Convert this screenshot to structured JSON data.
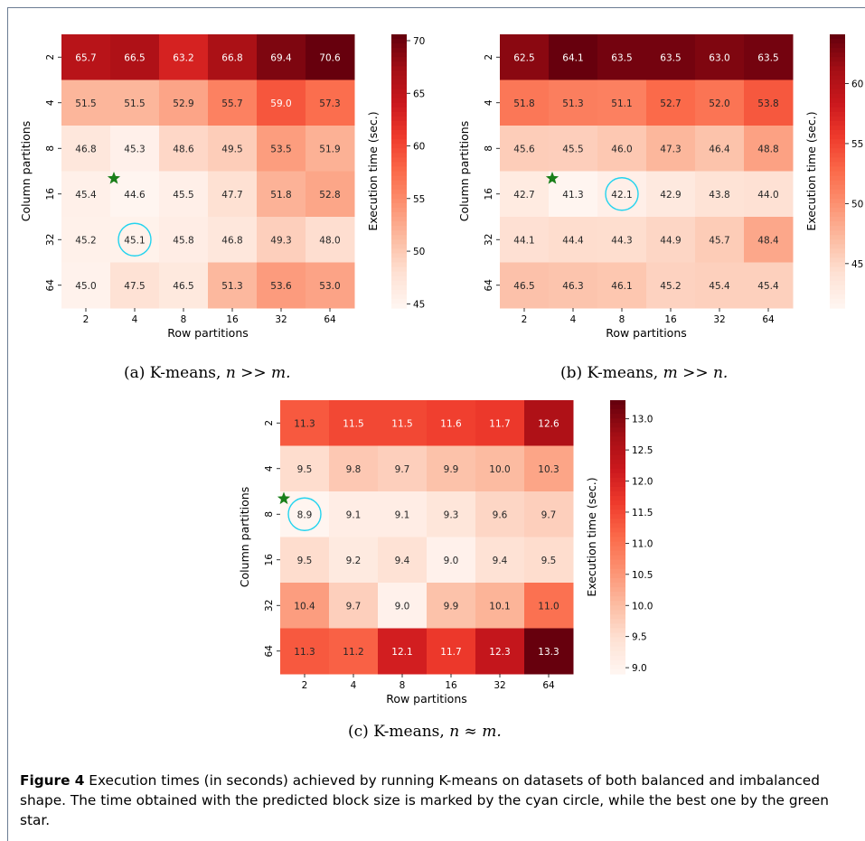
{
  "figure": {
    "label": "Figure 4",
    "caption": "Execution times (in seconds) achieved by running K-means on datasets of both balanced and imbalanced shape. The time obtained with the predicted block size is marked by the cyan circle, while the best one by the green star."
  },
  "colors": {
    "cmap": [
      "#fff5f0",
      "#fee0d2",
      "#fcbba1",
      "#fc9272",
      "#fb6a4a",
      "#ef3b2c",
      "#cb181d",
      "#a50f15",
      "#67000d"
    ],
    "star": "#1a7f1a",
    "circle": "#22d3ee",
    "frame": "#6b7c93"
  },
  "chart_data": [
    {
      "type": "heatmap",
      "caption_prefix": "(a) K-means,",
      "caption_math": "n >> m.",
      "xlabel": "Row partitions",
      "ylabel": "Column partitions",
      "colorbar_label": "Execution time (sec.)",
      "x": [
        "2",
        "4",
        "8",
        "16",
        "32",
        "64"
      ],
      "y": [
        "2",
        "4",
        "8",
        "16",
        "32",
        "64"
      ],
      "values": [
        [
          65.7,
          66.5,
          63.2,
          66.8,
          69.4,
          70.6
        ],
        [
          51.5,
          51.5,
          52.9,
          55.7,
          59.0,
          57.3
        ],
        [
          46.8,
          45.3,
          48.6,
          49.5,
          53.5,
          51.9
        ],
        [
          45.4,
          44.6,
          45.5,
          47.7,
          51.8,
          52.8
        ],
        [
          45.2,
          45.1,
          45.8,
          46.8,
          49.3,
          48.0
        ],
        [
          45.0,
          47.5,
          46.5,
          51.3,
          53.6,
          53.0
        ]
      ],
      "vmin": 44.6,
      "vmax": 70.6,
      "colorbar_ticks": [
        "45",
        "50",
        "55",
        "60",
        "65",
        "70"
      ],
      "colorbar_tick_values": [
        45,
        50,
        55,
        60,
        65,
        70
      ],
      "best_star": {
        "row": 3,
        "col": 1
      },
      "predicted_circle": {
        "row": 4,
        "col": 1
      }
    },
    {
      "type": "heatmap",
      "caption_prefix": "(b) K-means,",
      "caption_math": "m >> n.",
      "xlabel": "Row partitions",
      "ylabel": "Column partitions",
      "colorbar_label": "Execution time (sec.)",
      "x": [
        "2",
        "4",
        "8",
        "16",
        "32",
        "64"
      ],
      "y": [
        "2",
        "4",
        "8",
        "16",
        "32",
        "64"
      ],
      "values": [
        [
          62.5,
          64.1,
          63.5,
          63.5,
          63.0,
          63.5
        ],
        [
          51.8,
          51.3,
          51.1,
          52.7,
          52.0,
          53.8
        ],
        [
          45.6,
          45.5,
          46.0,
          47.3,
          46.4,
          48.8
        ],
        [
          42.7,
          41.3,
          42.1,
          42.9,
          43.8,
          44.0
        ],
        [
          44.1,
          44.4,
          44.3,
          44.9,
          45.7,
          48.4
        ],
        [
          46.5,
          46.3,
          46.1,
          45.2,
          45.4,
          45.4
        ]
      ],
      "vmin": 41.3,
      "vmax": 64.1,
      "colorbar_ticks": [
        "45",
        "50",
        "55",
        "60"
      ],
      "colorbar_tick_values": [
        45,
        50,
        55,
        60
      ],
      "best_star": {
        "row": 3,
        "col": 1
      },
      "predicted_circle": {
        "row": 3,
        "col": 2
      }
    },
    {
      "type": "heatmap",
      "caption_prefix": "(c) K-means,",
      "caption_math": "n ≈ m.",
      "xlabel": "Row partitions",
      "ylabel": "Column partitions",
      "colorbar_label": "Execution time (sec.)",
      "x": [
        "2",
        "4",
        "8",
        "16",
        "32",
        "64"
      ],
      "y": [
        "2",
        "4",
        "8",
        "16",
        "32",
        "64"
      ],
      "values": [
        [
          11.3,
          11.5,
          11.5,
          11.6,
          11.7,
          12.6
        ],
        [
          9.5,
          9.8,
          9.7,
          9.9,
          10.0,
          10.3
        ],
        [
          8.9,
          9.1,
          9.1,
          9.3,
          9.6,
          9.7
        ],
        [
          9.5,
          9.2,
          9.4,
          9.0,
          9.4,
          9.5
        ],
        [
          10.4,
          9.7,
          9.0,
          9.9,
          10.1,
          11.0
        ],
        [
          11.3,
          11.2,
          12.1,
          11.7,
          12.3,
          13.3
        ]
      ],
      "vmin": 8.9,
      "vmax": 13.3,
      "colorbar_ticks": [
        "9.0",
        "9.5",
        "10.0",
        "10.5",
        "11.0",
        "11.5",
        "12.0",
        "12.5",
        "13.0"
      ],
      "colorbar_tick_values": [
        9.0,
        9.5,
        10.0,
        10.5,
        11.0,
        11.5,
        12.0,
        12.5,
        13.0
      ],
      "best_star": {
        "row": 2,
        "col": 0
      },
      "predicted_circle": {
        "row": 2,
        "col": 0
      }
    }
  ]
}
